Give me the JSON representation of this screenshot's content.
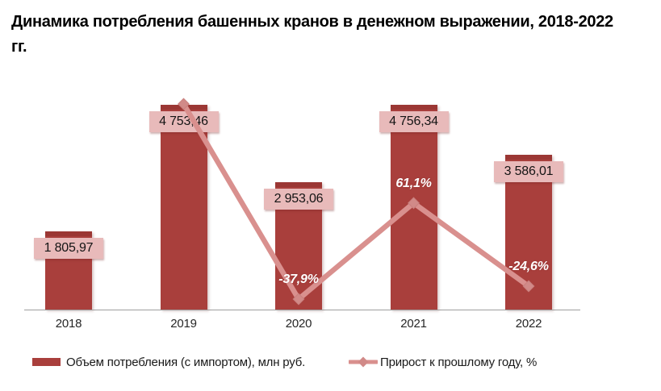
{
  "title": "Динамика потребления башенных кранов в денежном выражении, 2018-2022 гг.",
  "chart_data": {
    "type": "bar",
    "combo": "bar+line",
    "categories": [
      "2018",
      "2019",
      "2020",
      "2021",
      "2022"
    ],
    "series": [
      {
        "name": "Объем потребления (с импортом), млн руб.",
        "type": "bar",
        "values": [
          1805.97,
          4753.46,
          2953.06,
          4756.34,
          3586.01
        ],
        "labels": [
          "1 805,97",
          "4 753,46",
          "2 953,06",
          "4 756,34",
          "3 586,01"
        ],
        "color": "#A93F3C"
      },
      {
        "name": "Прирост к прошлому году, %",
        "type": "line",
        "values": [
          null,
          163.2,
          -37.9,
          61.1,
          -24.6
        ],
        "labels": [
          null,
          null,
          "-37,9%",
          "61,1%",
          "-24,6%"
        ],
        "color": "#D9908E",
        "marker": "diamond"
      }
    ],
    "title": "Динамика потребления башенных кранов в денежном выражении, 2018-2022 гг.",
    "xlabel": "",
    "ylabel": "",
    "ylim": [
      0,
      5100
    ],
    "grid": false,
    "legend_position": "bottom",
    "value_label_style": "pink box, dark text",
    "line_label_style": "white bold italic"
  },
  "colors": {
    "bar": "#A93F3C",
    "bar_cap": "#9B3734",
    "value_label_bg": "#E8BABA",
    "line": "#D9908E",
    "marker": "#D18A88",
    "axis": "#9E9E9E",
    "background": "#FFFFFF"
  }
}
